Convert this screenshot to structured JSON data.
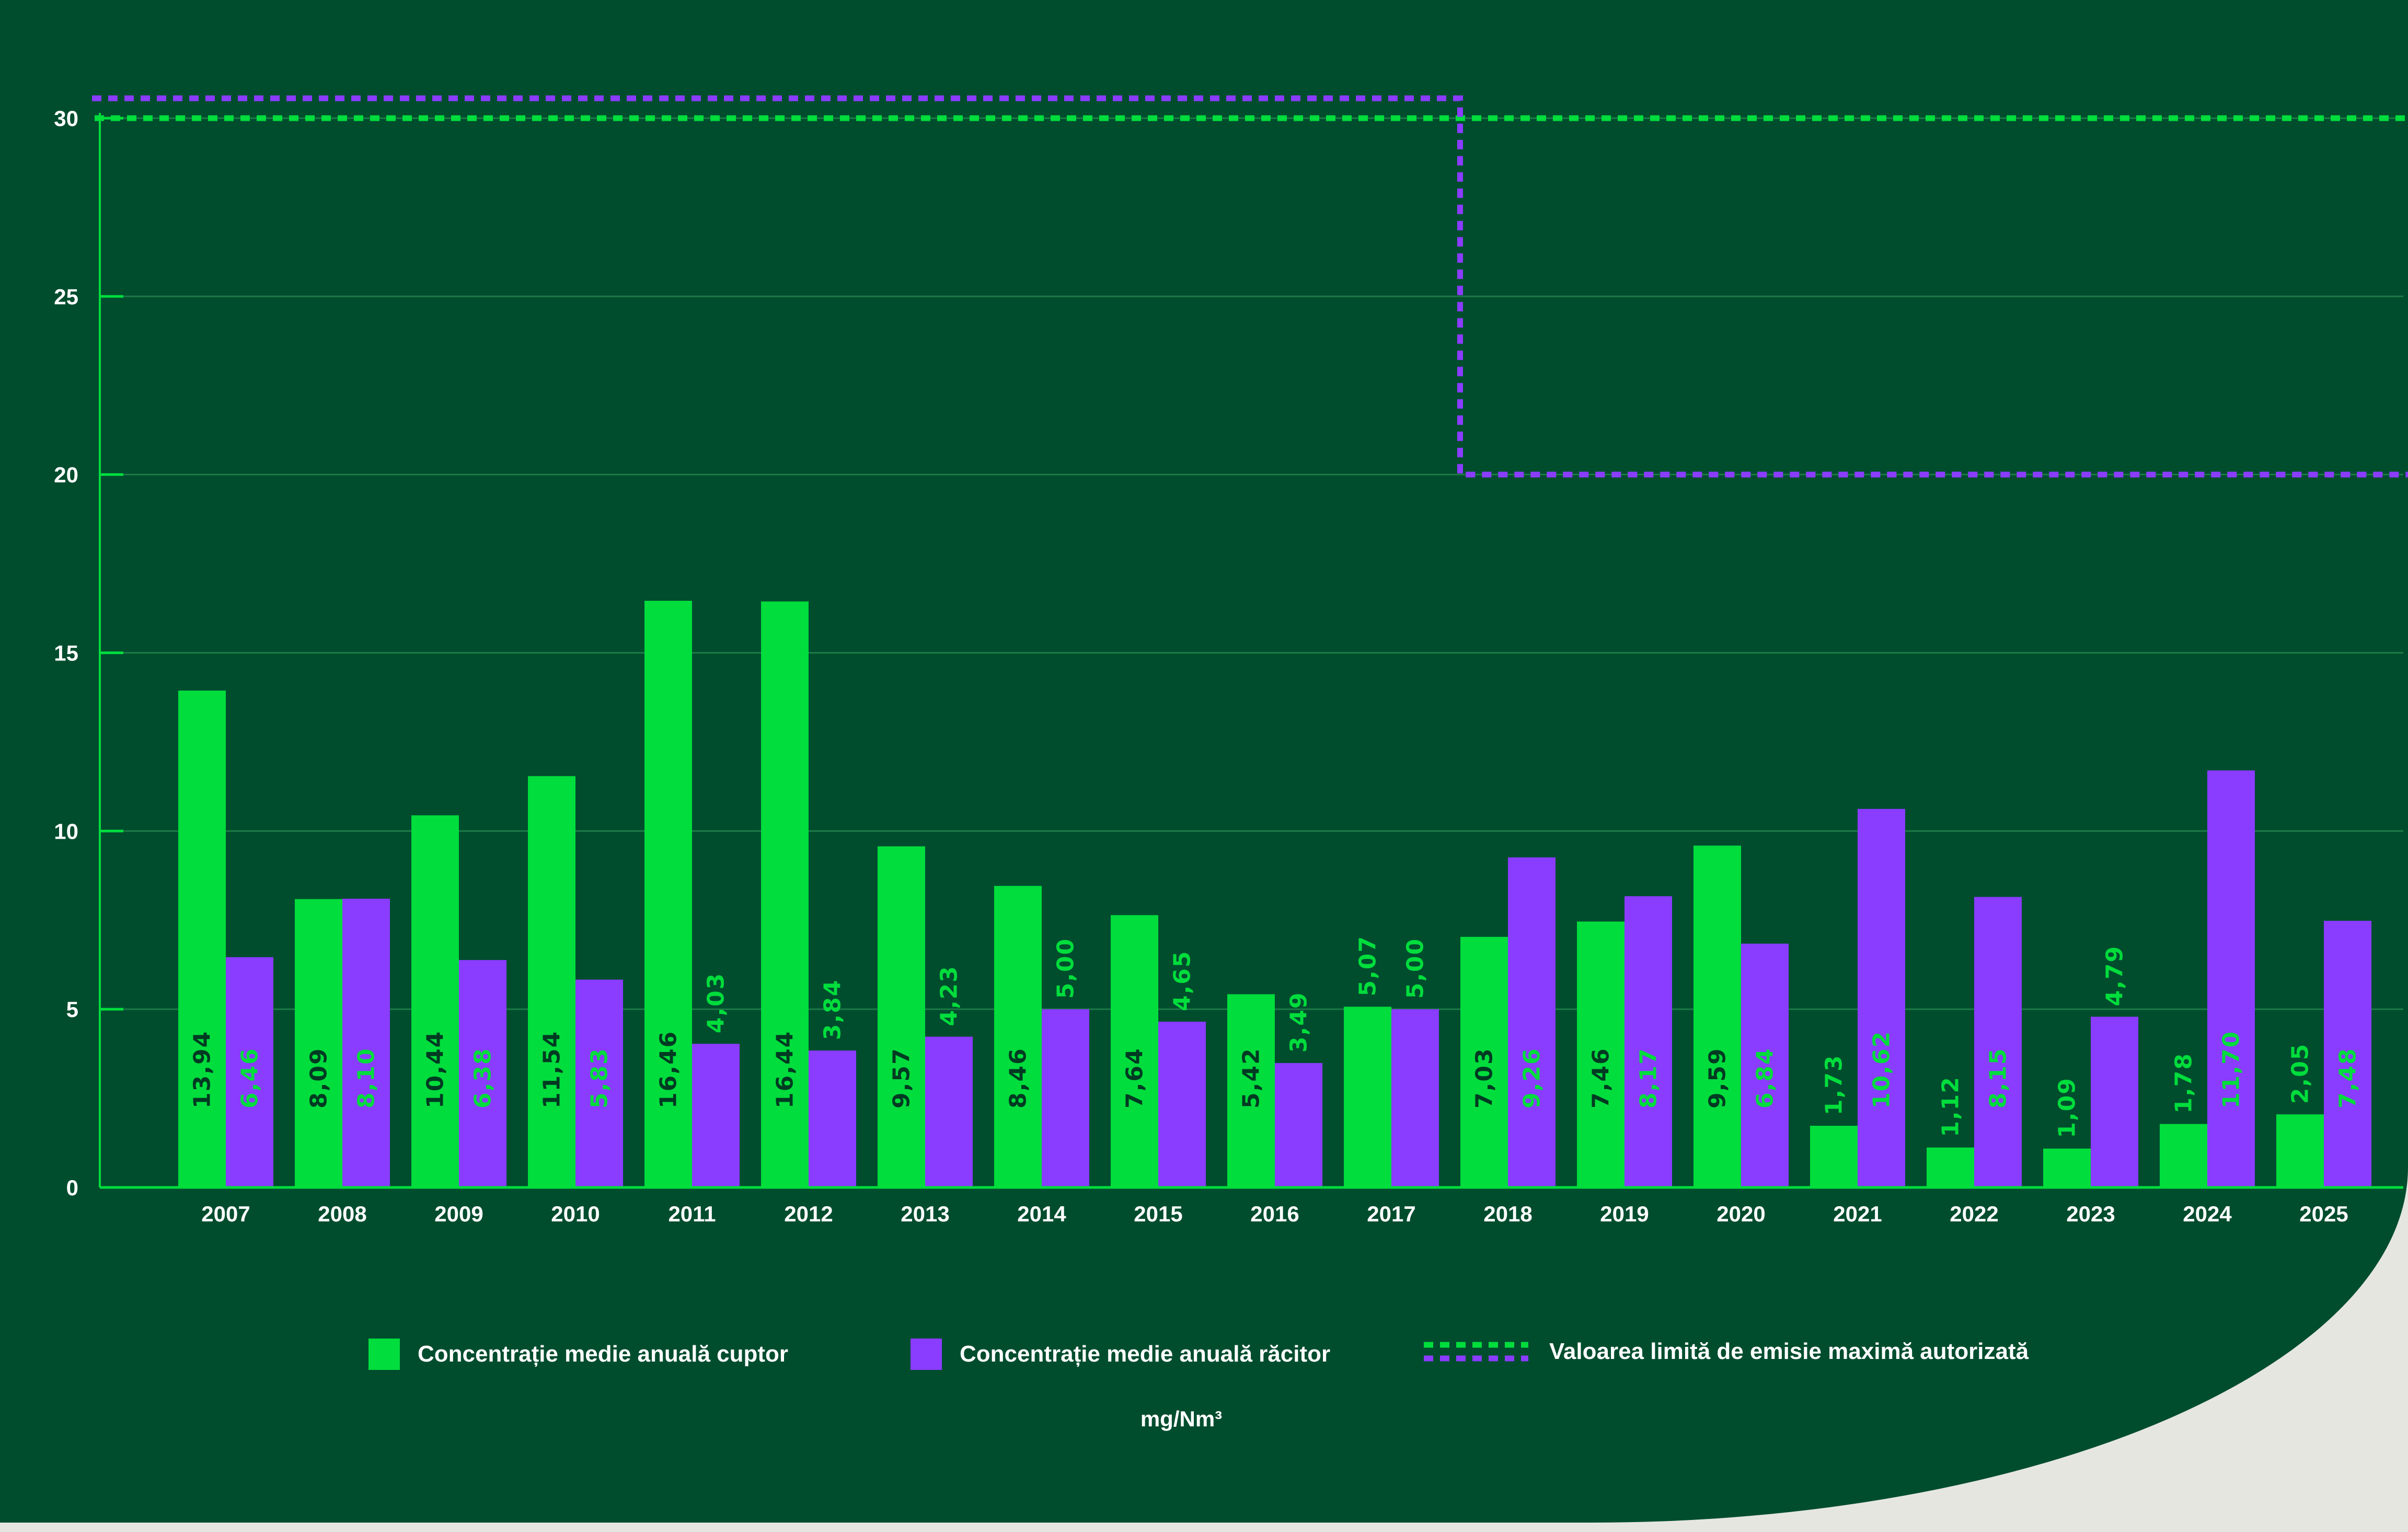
{
  "chart_data": {
    "type": "bar",
    "title": "",
    "xlabel": "",
    "ylabel": "mg/Nm³",
    "ylim": [
      0,
      30
    ],
    "yticks": [
      0,
      5,
      10,
      15,
      20,
      25,
      30
    ],
    "grid": true,
    "categories": [
      "2007",
      "2008",
      "2009",
      "2010",
      "2011",
      "2012",
      "2013",
      "2014",
      "2015",
      "2016",
      "2017",
      "2018",
      "2019",
      "2020",
      "2021",
      "2022",
      "2023",
      "2024",
      "2025"
    ],
    "series": [
      {
        "name": "Concentrație medie anuală cuptor",
        "color": "#00dd3c",
        "values": [
          13.94,
          8.09,
          10.44,
          11.54,
          16.46,
          16.44,
          9.57,
          8.46,
          7.64,
          5.42,
          5.07,
          7.03,
          7.46,
          9.59,
          1.73,
          1.12,
          1.09,
          1.78,
          2.05
        ]
      },
      {
        "name": "Concentrație medie anuală răcitor",
        "color": "#8a3cff",
        "values": [
          6.46,
          8.1,
          6.38,
          5.83,
          4.03,
          3.84,
          4.23,
          5.0,
          4.65,
          3.49,
          5.0,
          9.26,
          8.17,
          6.84,
          10.62,
          8.15,
          4.79,
          11.7,
          7.48
        ]
      }
    ],
    "limits": {
      "name": "Valoarea limită de emisie maximă autorizată",
      "cuptor": {
        "color": "#00dd3c",
        "value": 30
      },
      "racitor": {
        "color": "#8a3cff",
        "segments": [
          {
            "from": "2007",
            "to": "2017",
            "value": 30
          },
          {
            "from": "2018",
            "to": "2025",
            "value": 20
          }
        ]
      }
    },
    "legend_position": "bottom",
    "unit": "mg/Nm³"
  }
}
